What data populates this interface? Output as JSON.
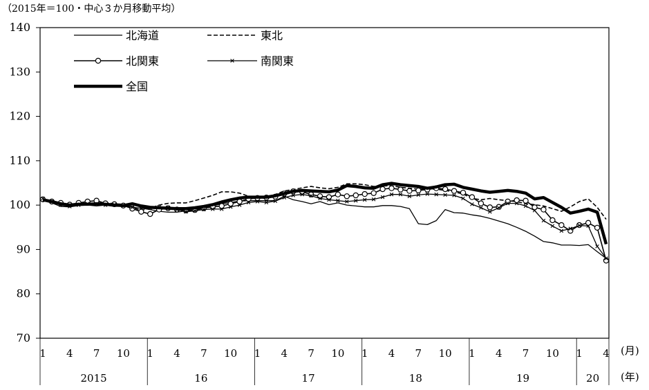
{
  "chart_data": {
    "type": "line",
    "subtitle": "（2015年＝100・中心３か月移動平均）",
    "ylim": [
      70,
      140
    ],
    "yticks": [
      70,
      80,
      90,
      100,
      110,
      120,
      130,
      140
    ],
    "x_unit_label": "(月)",
    "year_unit_label": "(年)",
    "month_tick_labels": [
      "1",
      "4",
      "7",
      "10",
      "1",
      "4",
      "7",
      "10",
      "1",
      "4",
      "7",
      "10",
      "1",
      "4",
      "7",
      "10",
      "1",
      "4",
      "7",
      "10",
      "1",
      "4"
    ],
    "year_labels": [
      "2015",
      "16",
      "17",
      "18",
      "19",
      "20"
    ],
    "x": [
      "2015-01",
      "2015-02",
      "2015-03",
      "2015-04",
      "2015-05",
      "2015-06",
      "2015-07",
      "2015-08",
      "2015-09",
      "2015-10",
      "2015-11",
      "2015-12",
      "2016-01",
      "2016-02",
      "2016-03",
      "2016-04",
      "2016-05",
      "2016-06",
      "2016-07",
      "2016-08",
      "2016-09",
      "2016-10",
      "2016-11",
      "2016-12",
      "2017-01",
      "2017-02",
      "2017-03",
      "2017-04",
      "2017-05",
      "2017-06",
      "2017-07",
      "2017-08",
      "2017-09",
      "2017-10",
      "2017-11",
      "2017-12",
      "2018-01",
      "2018-02",
      "2018-03",
      "2018-04",
      "2018-05",
      "2018-06",
      "2018-07",
      "2018-08",
      "2018-09",
      "2018-10",
      "2018-11",
      "2018-12",
      "2019-01",
      "2019-02",
      "2019-03",
      "2019-04",
      "2019-05",
      "2019-06",
      "2019-07",
      "2019-08",
      "2019-09",
      "2019-10",
      "2019-11",
      "2019-12",
      "2020-01",
      "2020-02",
      "2020-03",
      "2020-04"
    ],
    "series": [
      {
        "name": "北海道",
        "color": "#000000",
        "style": "solid-thin",
        "marker": "none",
        "values": [
          101.0,
          100.5,
          99.7,
          99.6,
          99.9,
          100.0,
          99.8,
          100.0,
          99.7,
          99.8,
          99.5,
          99.3,
          99.0,
          98.6,
          98.4,
          98.4,
          98.7,
          98.8,
          99.3,
          99.8,
          100.3,
          100.6,
          100.9,
          101.0,
          101.0,
          101.0,
          101.0,
          102.0,
          101.2,
          100.8,
          100.3,
          100.8,
          100.1,
          100.5,
          100.0,
          99.8,
          99.6,
          99.6,
          99.9,
          99.9,
          99.7,
          99.2,
          95.8,
          95.6,
          96.5,
          99.0,
          98.3,
          98.2,
          97.8,
          97.5,
          97.0,
          96.4,
          95.8,
          95.0,
          94.1,
          93.0,
          91.8,
          91.5,
          91.0,
          91.0,
          90.9,
          91.1,
          89.5,
          88.0
        ]
      },
      {
        "name": "東北",
        "color": "#000000",
        "style": "dashed",
        "marker": "none",
        "values": [
          101.0,
          100.8,
          100.2,
          100.0,
          100.3,
          100.5,
          100.4,
          100.6,
          100.3,
          100.2,
          99.5,
          98.8,
          99.3,
          100.0,
          100.4,
          100.5,
          100.5,
          101.0,
          101.6,
          102.2,
          103.0,
          103.0,
          102.7,
          102.0,
          101.6,
          101.9,
          102.4,
          103.2,
          103.5,
          103.9,
          104.2,
          103.9,
          103.7,
          104.0,
          104.8,
          104.8,
          104.6,
          104.2,
          104.3,
          104.4,
          104.0,
          103.8,
          103.6,
          103.6,
          103.6,
          103.3,
          103.0,
          102.5,
          101.5,
          101.2,
          101.5,
          101.2,
          101.0,
          100.8,
          100.3,
          100.1,
          99.8,
          99.2,
          98.6,
          99.6,
          100.8,
          101.4,
          99.5,
          96.8
        ]
      },
      {
        "name": "北関東",
        "color": "#000000",
        "style": "solid",
        "marker": "circle",
        "values": [
          101.3,
          100.8,
          100.5,
          100.1,
          100.5,
          100.8,
          101.0,
          100.4,
          100.2,
          99.9,
          99.2,
          98.5,
          98.0,
          99.0,
          99.3,
          99.0,
          98.8,
          98.9,
          99.3,
          99.6,
          99.8,
          100.3,
          100.8,
          101.4,
          101.6,
          101.7,
          101.9,
          102.6,
          103.1,
          103.0,
          102.4,
          102.0,
          101.8,
          102.4,
          102.0,
          102.2,
          102.5,
          102.7,
          103.6,
          103.8,
          103.5,
          103.2,
          103.3,
          103.5,
          103.8,
          103.6,
          103.2,
          102.8,
          101.8,
          100.4,
          99.5,
          99.6,
          100.8,
          101.1,
          101.0,
          99.5,
          99.0,
          96.6,
          95.5,
          94.2,
          95.5,
          96.0,
          94.9,
          87.5
        ]
      },
      {
        "name": "南関東",
        "color": "#000000",
        "style": "solid-thin",
        "marker": "cross",
        "values": [
          101.5,
          100.8,
          100.0,
          99.7,
          100.0,
          100.3,
          100.2,
          100.0,
          100.1,
          99.9,
          99.5,
          99.3,
          99.3,
          99.6,
          99.5,
          99.0,
          98.5,
          98.7,
          99.0,
          99.1,
          99.1,
          99.6,
          100.0,
          100.6,
          100.8,
          100.6,
          100.9,
          101.7,
          102.2,
          102.4,
          102.1,
          101.5,
          101.2,
          101.0,
          100.8,
          101.0,
          101.2,
          101.3,
          101.8,
          102.4,
          102.4,
          102.0,
          102.3,
          102.5,
          102.4,
          102.3,
          102.2,
          101.5,
          100.2,
          99.4,
          98.5,
          99.4,
          100.4,
          100.4,
          99.8,
          98.8,
          96.5,
          95.3,
          94.2,
          94.7,
          95.4,
          95.3,
          90.7,
          88.0
        ]
      },
      {
        "name": "全国",
        "color": "#000000",
        "style": "bold",
        "marker": "none",
        "values": [
          101.2,
          100.8,
          100.3,
          100.0,
          100.2,
          100.2,
          100.3,
          100.2,
          100.0,
          99.9,
          100.3,
          99.8,
          99.5,
          99.4,
          99.3,
          99.2,
          99.2,
          99.4,
          99.7,
          100.1,
          100.7,
          101.2,
          101.6,
          101.8,
          101.8,
          101.8,
          102.1,
          102.6,
          103.1,
          103.3,
          103.2,
          103.1,
          103.0,
          103.4,
          104.4,
          104.2,
          103.9,
          103.8,
          104.6,
          104.9,
          104.6,
          104.4,
          104.2,
          103.8,
          104.1,
          104.6,
          104.7,
          104.0,
          103.6,
          103.2,
          102.9,
          103.1,
          103.3,
          103.1,
          102.7,
          101.4,
          101.7,
          100.6,
          99.5,
          98.2,
          98.6,
          99.1,
          98.4,
          91.2
        ]
      }
    ],
    "legend": [
      "北海道",
      "東北",
      "北関東",
      "南関東",
      "全国"
    ],
    "legend_placement": "top-left",
    "grid": false
  }
}
